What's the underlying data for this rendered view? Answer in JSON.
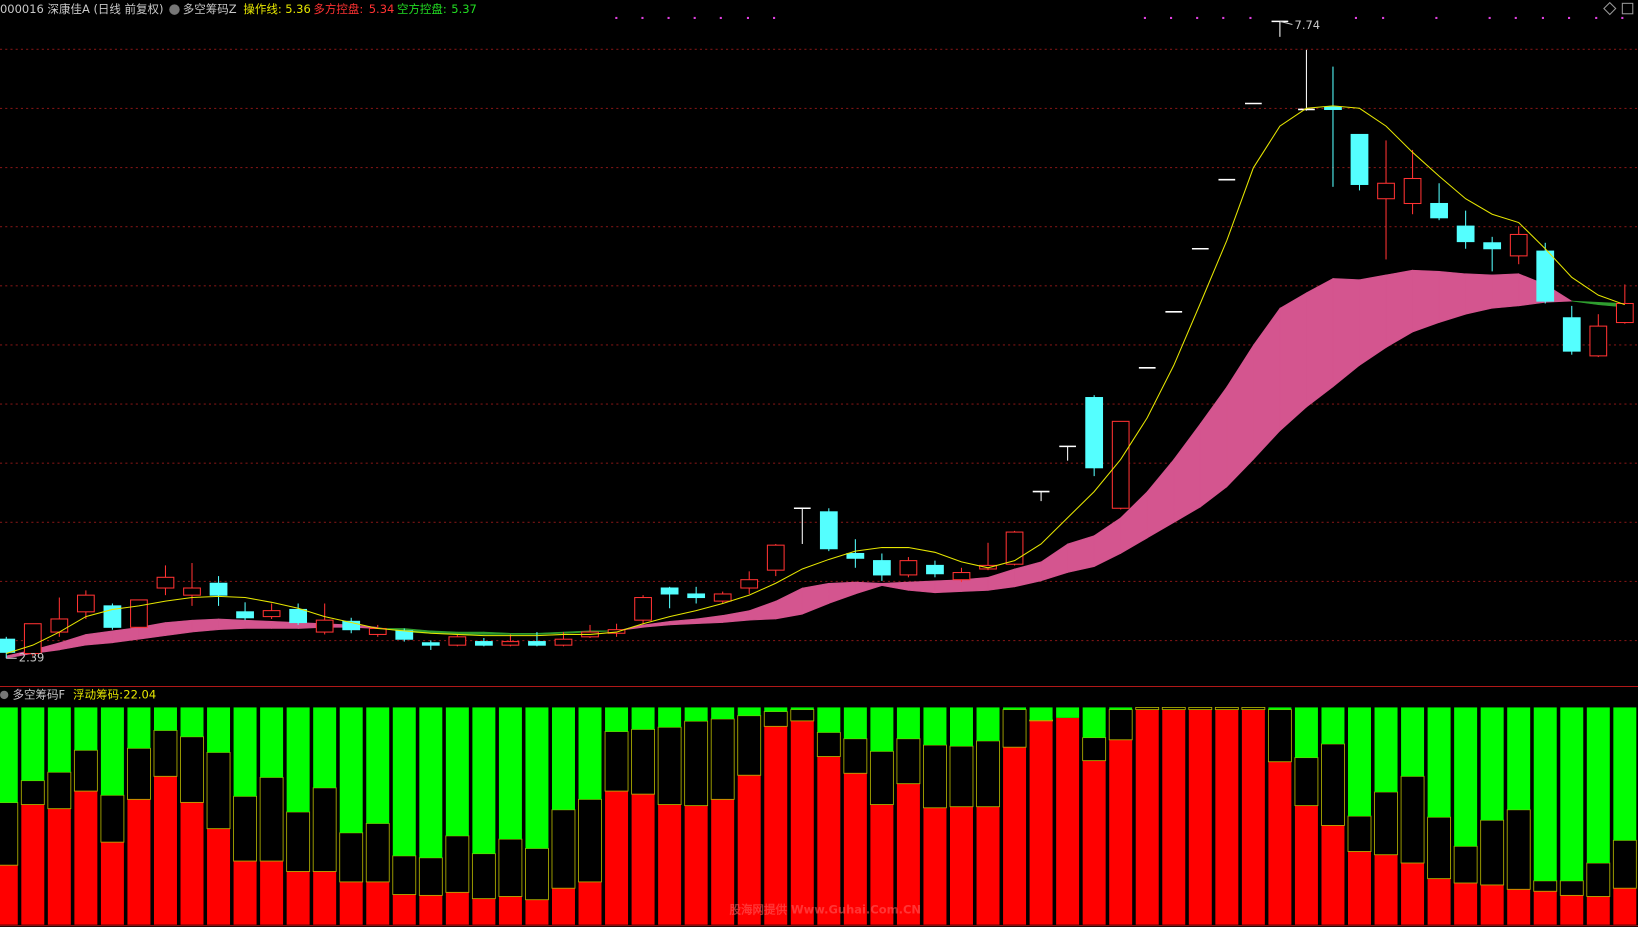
{
  "chart_data": [
    {
      "type": "candlestick",
      "title": "000016 深康佳A (日线 前复权)",
      "indicator": "多空筹码Z",
      "up_color": "#ff3232",
      "down_color": "#54ffff",
      "flat_color": "#ffffff",
      "band_colors": [
        "#d4558f",
        "#2f9d2f"
      ],
      "ylim": [
        2.17,
        7.83
      ],
      "open": [
        2.55,
        2.43,
        2.61,
        2.78,
        2.83,
        2.65,
        2.98,
        2.92,
        3.02,
        2.78,
        2.74,
        2.8,
        2.61,
        2.7,
        2.59,
        2.62,
        2.52,
        2.5,
        2.53,
        2.5,
        2.53,
        2.5,
        2.57,
        2.6,
        2.71,
        2.98,
        2.93,
        2.87,
        2.98,
        3.13,
        3.65,
        3.62,
        3.27,
        3.21,
        3.09,
        3.17,
        3.05,
        3.14,
        3.18,
        3.79,
        4.17,
        4.58,
        3.65,
        4.83,
        5.3,
        5.83,
        6.41,
        7.05,
        7.74,
        7.0,
        7.02,
        6.79,
        6.25,
        6.21,
        6.21,
        6.02,
        5.88,
        5.77,
        5.81,
        5.25,
        4.93,
        5.21
      ],
      "high": [
        2.57,
        2.68,
        2.9,
        2.96,
        2.85,
        2.88,
        3.17,
        3.19,
        3.08,
        2.86,
        2.85,
        2.85,
        2.85,
        2.73,
        2.67,
        2.64,
        2.54,
        2.59,
        2.56,
        2.59,
        2.61,
        2.61,
        2.67,
        2.68,
        2.92,
        2.99,
        2.99,
        2.95,
        3.12,
        3.35,
        3.65,
        3.65,
        3.39,
        3.27,
        3.24,
        3.21,
        3.15,
        3.36,
        3.46,
        3.79,
        4.17,
        4.6,
        4.38,
        4.83,
        5.3,
        5.83,
        6.41,
        7.05,
        7.74,
        7.5,
        7.36,
        6.79,
        6.74,
        6.66,
        6.38,
        6.15,
        5.93,
        6.02,
        5.88,
        5.35,
        5.28,
        5.53
      ],
      "low": [
        2.39,
        2.41,
        2.57,
        2.72,
        2.63,
        2.65,
        2.92,
        2.83,
        2.83,
        2.71,
        2.72,
        2.67,
        2.59,
        2.6,
        2.57,
        2.53,
        2.46,
        2.49,
        2.49,
        2.49,
        2.49,
        2.49,
        2.56,
        2.57,
        2.68,
        2.81,
        2.85,
        2.85,
        2.93,
        3.08,
        3.35,
        3.29,
        3.15,
        3.04,
        3.07,
        3.07,
        3.03,
        3.13,
        3.17,
        3.71,
        4.05,
        3.92,
        3.64,
        4.83,
        5.3,
        5.83,
        6.41,
        7.05,
        7.61,
        6.99,
        6.35,
        6.32,
        5.74,
        6.12,
        6.07,
        5.83,
        5.64,
        5.7,
        5.37,
        4.94,
        4.92,
        5.2
      ],
      "close": [
        2.44,
        2.68,
        2.72,
        2.92,
        2.65,
        2.88,
        3.07,
        2.98,
        2.92,
        2.73,
        2.79,
        2.69,
        2.71,
        2.63,
        2.64,
        2.55,
        2.5,
        2.57,
        2.5,
        2.53,
        2.5,
        2.55,
        2.61,
        2.63,
        2.9,
        2.93,
        2.9,
        2.93,
        3.05,
        3.34,
        3.65,
        3.31,
        3.23,
        3.09,
        3.21,
        3.1,
        3.11,
        3.17,
        3.45,
        3.79,
        4.17,
        3.99,
        4.38,
        4.83,
        5.3,
        5.83,
        6.41,
        7.05,
        7.74,
        7.0,
        7.0,
        6.37,
        6.38,
        6.42,
        6.09,
        5.89,
        5.83,
        5.95,
        5.39,
        4.97,
        5.18,
        5.37
      ],
      "series": [
        {
          "name": "操作线:",
          "color": "#e6e600",
          "values": [
            2.43,
            2.5,
            2.61,
            2.74,
            2.8,
            2.83,
            2.87,
            2.9,
            2.91,
            2.9,
            2.86,
            2.81,
            2.74,
            2.69,
            2.64,
            2.62,
            2.6,
            2.59,
            2.58,
            2.58,
            2.58,
            2.59,
            2.59,
            2.61,
            2.68,
            2.74,
            2.79,
            2.85,
            2.92,
            3.02,
            3.14,
            3.22,
            3.29,
            3.32,
            3.32,
            3.28,
            3.2,
            3.15,
            3.21,
            3.35,
            3.57,
            3.79,
            4.06,
            4.41,
            4.85,
            5.37,
            5.9,
            6.51,
            6.86,
            7.01,
            7.03,
            7.01,
            6.86,
            6.64,
            6.44,
            6.25,
            6.12,
            6.05,
            5.83,
            5.59,
            5.44,
            5.36
          ]
        },
        {
          "name": "多方控盘:",
          "color": "#ff3232",
          "values": [
            2.41,
            2.46,
            2.52,
            2.59,
            2.62,
            2.65,
            2.69,
            2.71,
            2.72,
            2.71,
            2.7,
            2.69,
            2.68,
            2.67,
            2.65,
            2.61,
            2.6,
            2.59,
            2.59,
            2.59,
            2.59,
            2.6,
            2.61,
            2.62,
            2.67,
            2.7,
            2.72,
            2.75,
            2.79,
            2.87,
            2.98,
            3.02,
            3.03,
            3.02,
            3.03,
            3.04,
            3.05,
            3.07,
            3.14,
            3.2,
            3.35,
            3.42,
            3.57,
            3.79,
            4.06,
            4.36,
            4.67,
            5.02,
            5.33,
            5.46,
            5.58,
            5.57,
            5.61,
            5.65,
            5.64,
            5.62,
            5.61,
            5.62,
            5.53,
            5.39,
            5.36,
            5.34
          ]
        },
        {
          "name": "空方控盘:",
          "color": "#22dd22",
          "values": [
            2.39,
            2.43,
            2.46,
            2.5,
            2.52,
            2.55,
            2.58,
            2.61,
            2.63,
            2.64,
            2.64,
            2.64,
            2.65,
            2.65,
            2.64,
            2.64,
            2.62,
            2.61,
            2.61,
            2.6,
            2.6,
            2.61,
            2.62,
            2.62,
            2.65,
            2.67,
            2.68,
            2.69,
            2.71,
            2.72,
            2.76,
            2.85,
            2.93,
            3.0,
            2.96,
            2.94,
            2.95,
            2.96,
            2.99,
            3.04,
            3.11,
            3.16,
            3.27,
            3.4,
            3.53,
            3.66,
            3.83,
            4.06,
            4.3,
            4.5,
            4.67,
            4.85,
            5.0,
            5.13,
            5.21,
            5.28,
            5.33,
            5.35,
            5.38,
            5.39,
            5.38,
            5.37
          ]
        }
      ]
    },
    {
      "type": "stacked_bar",
      "title": "多空筹码F",
      "ylim": [
        0,
        100
      ],
      "series": [
        {
          "color": "#ff0000",
          "values": [
            27.4,
            55.3,
            53.4,
            61.5,
            38.0,
            57.7,
            68.3,
            56.3,
            44.2,
            29.3,
            29.3,
            24.5,
            24.5,
            19.7,
            19.7,
            13.9,
            13.5,
            14.9,
            12.0,
            13.0,
            11.5,
            16.8,
            19.7,
            61.5,
            60.1,
            55.3,
            54.8,
            57.7,
            68.8,
            91.3,
            93.8,
            77.4,
            69.7,
            55.3,
            64.9,
            53.8,
            54.3,
            54.3,
            81.7,
            93.8,
            95.2,
            75.5,
            85.1,
            99.0,
            99.0,
            99.0,
            99.0,
            99.0,
            75.0,
            54.8,
            45.7,
            33.7,
            32.2,
            28.4,
            21.2,
            19.2,
            18.3,
            16.3,
            15.4,
            13.5,
            13.0,
            16.8
          ]
        },
        {
          "name": "浮动筹码:",
          "color": "#000000",
          "values": [
            28.8,
            11.0,
            16.8,
            18.8,
            21.6,
            23.5,
            21.1,
            30.2,
            35.1,
            29.8,
            38.5,
            27.4,
            38.5,
            22.6,
            26.9,
            17.8,
            17.3,
            26.0,
            20.7,
            26.4,
            23.6,
            36.1,
            38.0,
            27.4,
            29.8,
            35.6,
            38.9,
            37.0,
            27.4,
            6.8,
            5.2,
            11.1,
            15.9,
            24.5,
            20.7,
            28.9,
            27.9,
            30.3,
            17.3,
            0.4,
            0.0,
            10.6,
            13.9,
            1.0,
            1.0,
            1.0,
            1.0,
            1.0,
            24.0,
            22.1,
            37.5,
            16.3,
            28.9,
            39.9,
            28.3,
            16.9,
            29.8,
            36.6,
            4.8,
            6.7,
            15.4,
            22.04
          ]
        },
        {
          "color": "#00ff00",
          "values": [
            43.8,
            33.7,
            29.8,
            19.7,
            40.4,
            18.8,
            10.6,
            13.5,
            20.7,
            40.9,
            32.2,
            48.1,
            37.0,
            57.7,
            53.4,
            68.3,
            69.2,
            59.1,
            67.3,
            60.6,
            64.9,
            47.1,
            42.3,
            11.1,
            10.1,
            9.1,
            6.3,
            5.3,
            3.8,
            1.9,
            1.0,
            11.5,
            14.4,
            20.2,
            14.4,
            17.3,
            17.8,
            15.4,
            1.0,
            5.8,
            4.8,
            13.9,
            1.0,
            0.0,
            0.0,
            0.0,
            0.0,
            0.0,
            1.0,
            23.1,
            16.8,
            50.0,
            38.9,
            31.7,
            50.5,
            63.9,
            51.9,
            47.1,
            79.8,
            79.8,
            71.6,
            61.16
          ]
        }
      ],
      "watermark": "股海网提供 Www.Guhai.Com.CN"
    }
  ]
}
